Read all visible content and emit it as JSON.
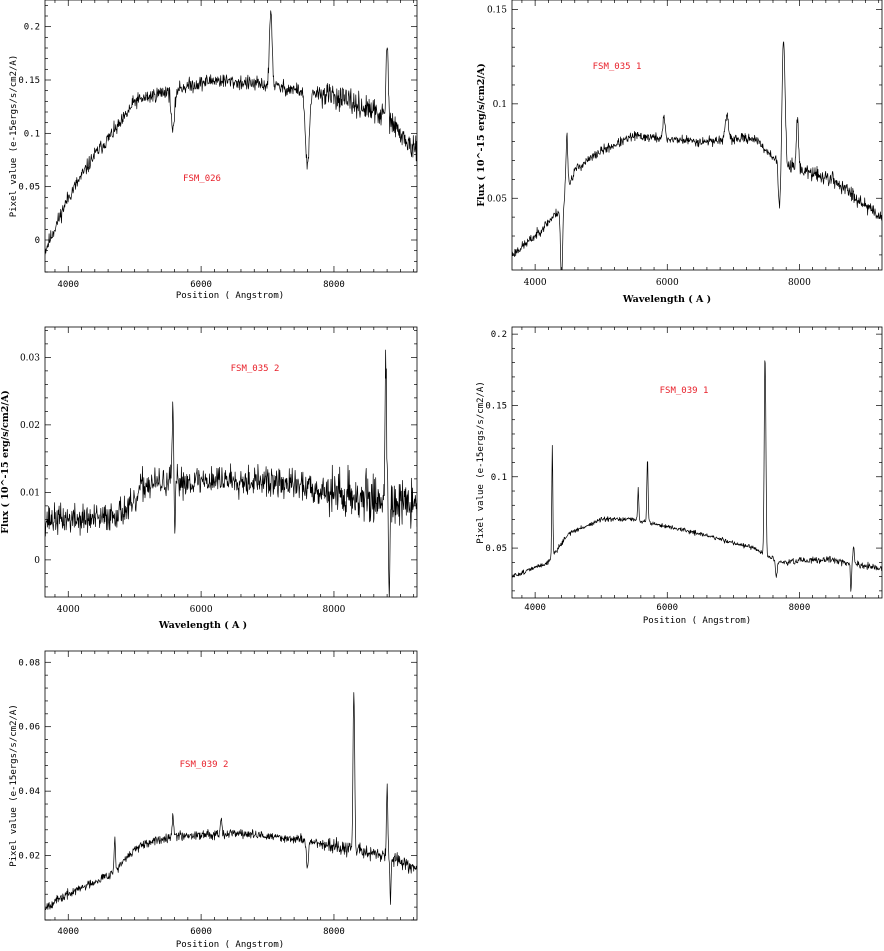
{
  "chart_data": [
    {
      "type": "line",
      "id": "p1",
      "label": "FSM_026",
      "label_color": "#e8202a",
      "xlabel": "Position ( Angstrom)",
      "ylabel": "Pixel value (e-15ergs/s/cm2/A)",
      "axis_font": "mono",
      "xlim": [
        3650,
        9250
      ],
      "ylim": [
        -0.03,
        0.225
      ],
      "xticks": [
        4000,
        6000,
        8000
      ],
      "xtick_labels": [
        "4000",
        "6000",
        "8000"
      ],
      "yticks": [
        0,
        0.05,
        0.1,
        0.15,
        0.2
      ],
      "ytick_labels": [
        "0",
        "0.05",
        "0.1",
        "0.15",
        "0.2"
      ],
      "noise": 0.007,
      "seed": 11,
      "series": [
        {
          "continuum": [
            [
              3650,
              -0.01
            ],
            [
              4000,
              0.04
            ],
            [
              4400,
              0.08
            ],
            [
              4800,
              0.11
            ],
            [
              5000,
              0.13
            ],
            [
              5500,
              0.14
            ],
            [
              6200,
              0.15
            ],
            [
              7000,
              0.145
            ],
            [
              8000,
              0.135
            ],
            [
              8800,
              0.115
            ],
            [
              9250,
              0.08
            ]
          ],
          "features": [
            {
              "x": 5577,
              "amp": -0.04,
              "w": 25
            },
            {
              "x": 7050,
              "amp": 0.07,
              "w": 20
            },
            {
              "x": 7600,
              "amp": -0.07,
              "w": 30
            },
            {
              "x": 8800,
              "amp": 0.07,
              "w": 15
            }
          ]
        }
      ]
    },
    {
      "type": "line",
      "id": "p2",
      "label": "FSM_035 1",
      "label_color": "#e8202a",
      "xlabel": "Wavelength ( A )",
      "ylabel": "Flux ( 10^-15 erg/s/cm2/A)",
      "axis_font": "serif",
      "xlim": [
        3650,
        9250
      ],
      "ylim": [
        0.012,
        0.155
      ],
      "xticks": [
        4000,
        6000,
        8000
      ],
      "xtick_labels": [
        "4000",
        "6000",
        "8000"
      ],
      "yticks": [
        0.05,
        0.1,
        0.15
      ],
      "ytick_labels": [
        "0.05",
        "0.1",
        "0.15"
      ],
      "noise": 0.0025,
      "seed": 23,
      "series": [
        {
          "continuum": [
            [
              3650,
              0.02
            ],
            [
              4000,
              0.03
            ],
            [
              4400,
              0.045
            ],
            [
              4600,
              0.065
            ],
            [
              5000,
              0.075
            ],
            [
              5500,
              0.083
            ],
            [
              6500,
              0.08
            ],
            [
              7300,
              0.082
            ],
            [
              7600,
              0.072
            ],
            [
              8000,
              0.065
            ],
            [
              8500,
              0.06
            ],
            [
              9250,
              0.04
            ]
          ],
          "features": [
            {
              "x": 4400,
              "amp": -0.04,
              "w": 15
            },
            {
              "x": 4480,
              "amp": 0.03,
              "w": 15
            },
            {
              "x": 5950,
              "amp": 0.012,
              "w": 15
            },
            {
              "x": 6900,
              "amp": 0.012,
              "w": 25
            },
            {
              "x": 7700,
              "amp": -0.025,
              "w": 20
            },
            {
              "x": 7760,
              "amp": 0.065,
              "w": 22
            },
            {
              "x": 7970,
              "amp": 0.03,
              "w": 15
            }
          ]
        }
      ]
    },
    {
      "type": "line",
      "id": "p3",
      "label": "FSM_035 2",
      "label_color": "#e8202a",
      "xlabel": "Wavelength ( A )",
      "ylabel": "Flux ( 10^-15 erg/s/cm2/A)",
      "axis_font": "serif",
      "xlim": [
        3650,
        9250
      ],
      "ylim": [
        -0.0055,
        0.0345
      ],
      "xticks": [
        4000,
        6000,
        8000
      ],
      "xtick_labels": [
        "4000",
        "6000",
        "8000"
      ],
      "yticks": [
        0,
        0.01,
        0.02,
        0.03
      ],
      "ytick_labels": [
        "0",
        "0.01",
        "0.02",
        "0.03"
      ],
      "noise": 0.0022,
      "seed": 37,
      "series": [
        {
          "continuum": [
            [
              3650,
              0.006
            ],
            [
              4500,
              0.006
            ],
            [
              5000,
              0.008
            ],
            [
              5100,
              0.011
            ],
            [
              5500,
              0.0115
            ],
            [
              6500,
              0.012
            ],
            [
              7500,
              0.011
            ],
            [
              8500,
              0.009
            ],
            [
              9250,
              0.008
            ]
          ],
          "features": [
            {
              "x": 5577,
              "amp": 0.012,
              "w": 12
            },
            {
              "x": 5600,
              "amp": -0.01,
              "w": 10
            },
            {
              "x": 8780,
              "amp": 0.022,
              "w": 12
            },
            {
              "x": 8830,
              "amp": -0.012,
              "w": 10
            }
          ]
        }
      ]
    },
    {
      "type": "line",
      "id": "p4",
      "label": "FSM_039 1",
      "label_color": "#e8202a",
      "xlabel": "Position ( Angstrom)",
      "ylabel": "Pixel value (e-15ergs/s/cm2/A)",
      "axis_font": "mono",
      "xlim": [
        3650,
        9250
      ],
      "ylim": [
        0.015,
        0.205
      ],
      "xticks": [
        4000,
        6000,
        8000
      ],
      "xtick_labels": [
        "4000",
        "6000",
        "8000"
      ],
      "yticks": [
        0.05,
        0.1,
        0.15,
        0.2
      ],
      "ytick_labels": [
        "0.05",
        "0.1",
        "0.15",
        "0.2"
      ],
      "noise": 0.0016,
      "seed": 51,
      "series": [
        {
          "continuum": [
            [
              3650,
              0.03
            ],
            [
              4200,
              0.04
            ],
            [
              4500,
              0.06
            ],
            [
              5000,
              0.07
            ],
            [
              5500,
              0.07
            ],
            [
              6500,
              0.06
            ],
            [
              7300,
              0.05
            ],
            [
              7700,
              0.04
            ],
            [
              8500,
              0.042
            ],
            [
              9250,
              0.035
            ]
          ],
          "features": [
            {
              "x": 4260,
              "amp": 0.078,
              "w": 8
            },
            {
              "x": 5560,
              "amp": 0.022,
              "w": 9
            },
            {
              "x": 5700,
              "amp": 0.045,
              "w": 9
            },
            {
              "x": 7480,
              "amp": 0.14,
              "w": 12
            },
            {
              "x": 7650,
              "amp": -0.012,
              "w": 12
            },
            {
              "x": 8780,
              "amp": -0.02,
              "w": 8
            },
            {
              "x": 8820,
              "amp": 0.012,
              "w": 10
            }
          ]
        }
      ]
    },
    {
      "type": "line",
      "id": "p5",
      "label": "FSM_039 2",
      "label_color": "#e8202a",
      "xlabel": "Position ( Angstrom)",
      "ylabel": "Pixel value (e-15ergs/s/cm2/A)",
      "axis_font": "mono",
      "xlim": [
        3650,
        9250
      ],
      "ylim": [
        0,
        0.0835
      ],
      "xticks": [
        4000,
        6000,
        8000
      ],
      "xtick_labels": [
        "4000",
        "6000",
        "8000"
      ],
      "yticks": [
        0.02,
        0.04,
        0.06,
        0.08
      ],
      "ytick_labels": [
        "0.02",
        "0.04",
        "0.06",
        "0.08"
      ],
      "noise": 0.0014,
      "seed": 67,
      "series": [
        {
          "continuum": [
            [
              3650,
              0.004
            ],
            [
              4000,
              0.008
            ],
            [
              4700,
              0.015
            ],
            [
              5000,
              0.022
            ],
            [
              5500,
              0.026
            ],
            [
              6500,
              0.027
            ],
            [
              7500,
              0.025
            ],
            [
              8200,
              0.022
            ],
            [
              8800,
              0.02
            ],
            [
              9250,
              0.016
            ]
          ],
          "features": [
            {
              "x": 4700,
              "amp": 0.01,
              "w": 10
            },
            {
              "x": 5577,
              "amp": 0.006,
              "w": 12
            },
            {
              "x": 6300,
              "amp": 0.005,
              "w": 12
            },
            {
              "x": 7600,
              "amp": -0.008,
              "w": 15
            },
            {
              "x": 8300,
              "amp": 0.05,
              "w": 12
            },
            {
              "x": 8800,
              "amp": 0.02,
              "w": 10
            },
            {
              "x": 8850,
              "amp": -0.015,
              "w": 8
            }
          ]
        }
      ]
    }
  ]
}
